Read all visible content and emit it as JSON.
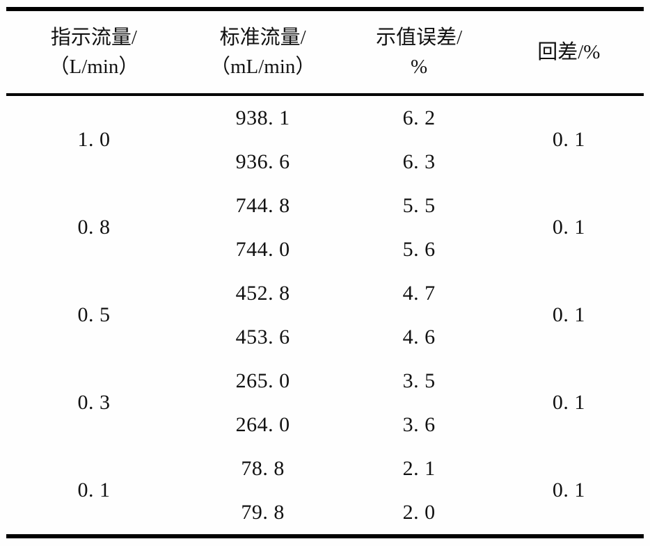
{
  "document": {
    "background_color": "#fefefe",
    "text_color": "#111111",
    "rule_color": "#000000"
  },
  "table": {
    "headers": [
      {
        "line1": "指示流量/",
        "line2": "（L/min）"
      },
      {
        "line1": "标准流量/",
        "line2": "（mL/min）"
      },
      {
        "line1": "示值误差/",
        "line2": "%"
      },
      {
        "line1": "回差/%",
        "line2": ""
      }
    ],
    "groups": [
      {
        "indicated": "1. 0",
        "hysteresis": "0. 1",
        "readings": [
          {
            "standard": "938. 1",
            "error": "6. 2"
          },
          {
            "standard": "936. 6",
            "error": "6. 3"
          }
        ]
      },
      {
        "indicated": "0. 8",
        "hysteresis": "0. 1",
        "readings": [
          {
            "standard": "744. 8",
            "error": "5. 5"
          },
          {
            "standard": "744. 0",
            "error": "5. 6"
          }
        ]
      },
      {
        "indicated": "0. 5",
        "hysteresis": "0. 1",
        "readings": [
          {
            "standard": "452. 8",
            "error": "4. 7"
          },
          {
            "standard": "453. 6",
            "error": "4. 6"
          }
        ]
      },
      {
        "indicated": "0. 3",
        "hysteresis": "0. 1",
        "readings": [
          {
            "standard": "265. 0",
            "error": "3. 5"
          },
          {
            "standard": "264. 0",
            "error": "3. 6"
          }
        ]
      },
      {
        "indicated": "0. 1",
        "hysteresis": "0. 1",
        "readings": [
          {
            "standard": "78. 8",
            "error": "2. 1"
          },
          {
            "standard": "79. 8",
            "error": "2. 0"
          }
        ]
      }
    ]
  }
}
